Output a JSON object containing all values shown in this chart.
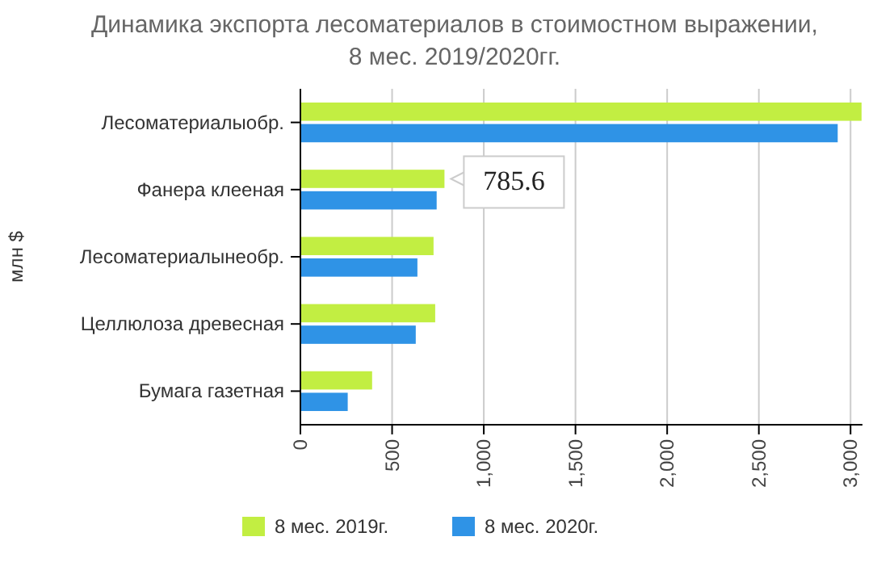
{
  "chart_data": {
    "type": "bar",
    "orientation": "horizontal",
    "title": "Динамика экспорта лесоматериалов в стоимостном выражении,\n8 мес. 2019/2020гг.",
    "ylabel": "млн $",
    "categories": [
      "Лесоматериалыобр.",
      "Фанера клееная",
      "Лесоматериалынеобр.",
      "Целлюлоза древесная",
      "Бумага газетная"
    ],
    "series": [
      {
        "name": "8 мес. 2019г.",
        "color": "#c2ee42",
        "values": [
          3060,
          785.6,
          726,
          735,
          391
        ]
      },
      {
        "name": "8 мес. 2020г.",
        "color": "#2f93e6",
        "values": [
          2930,
          743,
          638,
          629,
          258
        ]
      }
    ],
    "xlim": [
      0,
      3065
    ],
    "xticks": [
      0,
      {
        "value": 500,
        "label": "500"
      },
      {
        "value": 1000,
        "label": "1,000"
      },
      {
        "value": 1500,
        "label": "1,500"
      },
      {
        "value": 2000,
        "label": "2,000"
      },
      {
        "value": 2500,
        "label": "2,500"
      },
      {
        "value": 3000,
        "label": "3,000"
      }
    ],
    "grid": "x",
    "legend": "bottom",
    "annotations": [
      {
        "text": "785.6",
        "x": 785.6,
        "y": "Фанера клееная"
      }
    ]
  }
}
